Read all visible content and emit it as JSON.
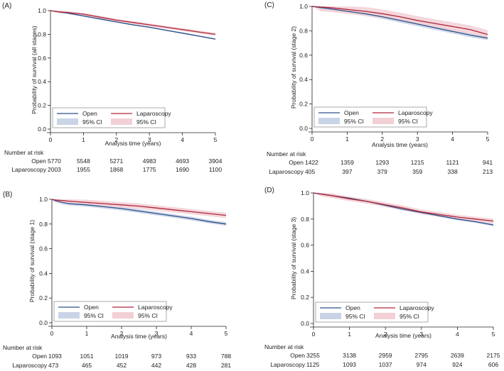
{
  "legend": {
    "open": "Open",
    "laparoscopy": "Laparoscopy",
    "ci": "95% CI"
  },
  "colors": {
    "open_line": "#2c4f8a",
    "open_ci": "#c9d4e6",
    "lap_line": "#b0263a",
    "lap_ci": "#f2d0d6",
    "axis": "#222222"
  },
  "chart_data": [
    {
      "type": "line",
      "panel_label": "(A)",
      "title": "",
      "xlabel": "Analysis time (years)",
      "ylabel": "Probability of survival (all stages)",
      "xlim": [
        0,
        5
      ],
      "ylim": [
        0,
        1
      ],
      "xticks": [
        "0",
        "1",
        "2",
        "3",
        "4",
        "5"
      ],
      "yticks": [
        "0.0",
        "0.2",
        "0.4",
        "0.6",
        "0.8",
        "1.0"
      ],
      "legend_position": "bottom-left",
      "series": [
        {
          "name": "Open",
          "x": [
            0,
            0.25,
            0.5,
            1,
            1.5,
            2,
            2.5,
            3,
            3.5,
            4,
            4.5,
            5
          ],
          "values": [
            1.0,
            0.99,
            0.98,
            0.955,
            0.93,
            0.905,
            0.88,
            0.86,
            0.835,
            0.81,
            0.785,
            0.76
          ],
          "ci_half": 0.006
        },
        {
          "name": "Laparoscopy",
          "x": [
            0,
            0.25,
            0.5,
            1,
            1.5,
            2,
            2.5,
            3,
            3.5,
            4,
            4.5,
            5
          ],
          "values": [
            1.0,
            0.99,
            0.985,
            0.97,
            0.945,
            0.92,
            0.9,
            0.88,
            0.86,
            0.84,
            0.82,
            0.8
          ],
          "ci_half": 0.012
        }
      ],
      "risk_table": {
        "title": "Number at risk",
        "rows": [
          {
            "label": "Open",
            "values": [
              "5770",
              "5548",
              "5271",
              "4983",
              "4693",
              "3904"
            ]
          },
          {
            "label": "Laparoscopy",
            "values": [
              "2003",
              "1955",
              "1868",
              "1775",
              "1690",
              "1100"
            ]
          }
        ]
      }
    },
    {
      "type": "line",
      "panel_label": "(B)",
      "title": "",
      "xlabel": "Analysis time (years)",
      "ylabel": "Probability of survival (stage 1)",
      "xlim": [
        0,
        5
      ],
      "ylim": [
        0,
        1
      ],
      "xticks": [
        "0",
        "1",
        "2",
        "3",
        "4",
        "5"
      ],
      "yticks": [
        "0.0",
        "0.2",
        "0.4",
        "0.6",
        "0.8",
        "1.0"
      ],
      "legend_position": "bottom-left",
      "series": [
        {
          "name": "Open",
          "x": [
            0,
            0.1,
            0.3,
            0.5,
            1,
            1.5,
            2,
            2.5,
            3,
            3.5,
            4,
            4.5,
            5
          ],
          "values": [
            1.0,
            0.99,
            0.975,
            0.965,
            0.955,
            0.94,
            0.925,
            0.905,
            0.885,
            0.865,
            0.845,
            0.82,
            0.8
          ],
          "ci_half": 0.015
        },
        {
          "name": "Laparoscopy",
          "x": [
            0,
            0.1,
            0.3,
            0.5,
            1,
            1.5,
            2,
            2.5,
            3,
            3.5,
            4,
            4.5,
            5
          ],
          "values": [
            1.0,
            0.995,
            0.99,
            0.985,
            0.975,
            0.965,
            0.955,
            0.945,
            0.93,
            0.915,
            0.9,
            0.885,
            0.87
          ],
          "ci_half": 0.022
        }
      ],
      "risk_table": {
        "title": "Number at risk",
        "rows": [
          {
            "label": "Open",
            "values": [
              "1093",
              "1051",
              "1019",
              "973",
              "933",
              "788"
            ]
          },
          {
            "label": "Laparoscopy",
            "values": [
              "473",
              "465",
              "452",
              "442",
              "428",
              "281"
            ]
          }
        ]
      }
    },
    {
      "type": "line",
      "panel_label": "(C)",
      "title": "",
      "xlabel": "Analysis time (years)",
      "ylabel": "Probability of survival (stage 2)",
      "xlim": [
        0,
        5
      ],
      "ylim": [
        0,
        1
      ],
      "xticks": [
        "0",
        "1",
        "2",
        "3",
        "4",
        "5"
      ],
      "yticks": [
        "0.0",
        "0.2",
        "0.4",
        "0.6",
        "0.8",
        "1.0"
      ],
      "legend_position": "bottom-left",
      "series": [
        {
          "name": "Open",
          "x": [
            0,
            0.25,
            0.5,
            1,
            1.5,
            2,
            2.5,
            3,
            3.5,
            4,
            4.5,
            5
          ],
          "values": [
            1.0,
            0.99,
            0.98,
            0.96,
            0.94,
            0.915,
            0.885,
            0.855,
            0.825,
            0.795,
            0.765,
            0.74
          ],
          "ci_half": 0.018
        },
        {
          "name": "Laparoscopy",
          "x": [
            0,
            0.25,
            0.5,
            1,
            1.5,
            2,
            2.5,
            3,
            3.5,
            4,
            4.5,
            5
          ],
          "values": [
            1.0,
            0.995,
            0.99,
            0.975,
            0.96,
            0.94,
            0.915,
            0.885,
            0.86,
            0.835,
            0.81,
            0.77
          ],
          "ci_half": 0.035
        }
      ],
      "risk_table": {
        "title": "Number at risk",
        "rows": [
          {
            "label": "Open",
            "values": [
              "1422",
              "1359",
              "1293",
              "1215",
              "1121",
              "941"
            ]
          },
          {
            "label": "Laparoscopy",
            "values": [
              "405",
              "397",
              "379",
              "359",
              "338",
              "213"
            ]
          }
        ]
      }
    },
    {
      "type": "line",
      "panel_label": "(D)",
      "title": "",
      "xlabel": "Analysis time (years)",
      "ylabel": "Probability of survival (stage 3)",
      "xlim": [
        0,
        5
      ],
      "ylim": [
        0,
        1
      ],
      "xticks": [
        "0",
        "1",
        "2",
        "3",
        "4",
        "5"
      ],
      "yticks": [
        "0.0",
        "0.2",
        "0.4",
        "0.6",
        "0.8",
        "1.0"
      ],
      "legend_position": "bottom-left",
      "series": [
        {
          "name": "Open",
          "x": [
            0,
            0.25,
            0.5,
            1,
            1.5,
            2,
            2.5,
            3,
            3.5,
            4,
            4.5,
            5
          ],
          "values": [
            1.0,
            0.99,
            0.98,
            0.96,
            0.935,
            0.905,
            0.875,
            0.85,
            0.825,
            0.8,
            0.78,
            0.755
          ],
          "ci_half": 0.01
        },
        {
          "name": "Laparoscopy",
          "x": [
            0,
            0.25,
            0.5,
            1,
            1.5,
            2,
            2.5,
            3,
            3.5,
            4,
            4.5,
            5
          ],
          "values": [
            1.0,
            0.99,
            0.98,
            0.955,
            0.935,
            0.91,
            0.885,
            0.855,
            0.835,
            0.815,
            0.8,
            0.785
          ],
          "ci_half": 0.018
        }
      ],
      "risk_table": {
        "title": "Number at risk",
        "rows": [
          {
            "label": "Open",
            "values": [
              "3255",
              "3138",
              "2959",
              "2795",
              "2639",
              "2175"
            ]
          },
          {
            "label": "Laparoscopy",
            "values": [
              "1125",
              "1093",
              "1037",
              "974",
              "924",
              "606"
            ]
          }
        ]
      }
    }
  ]
}
